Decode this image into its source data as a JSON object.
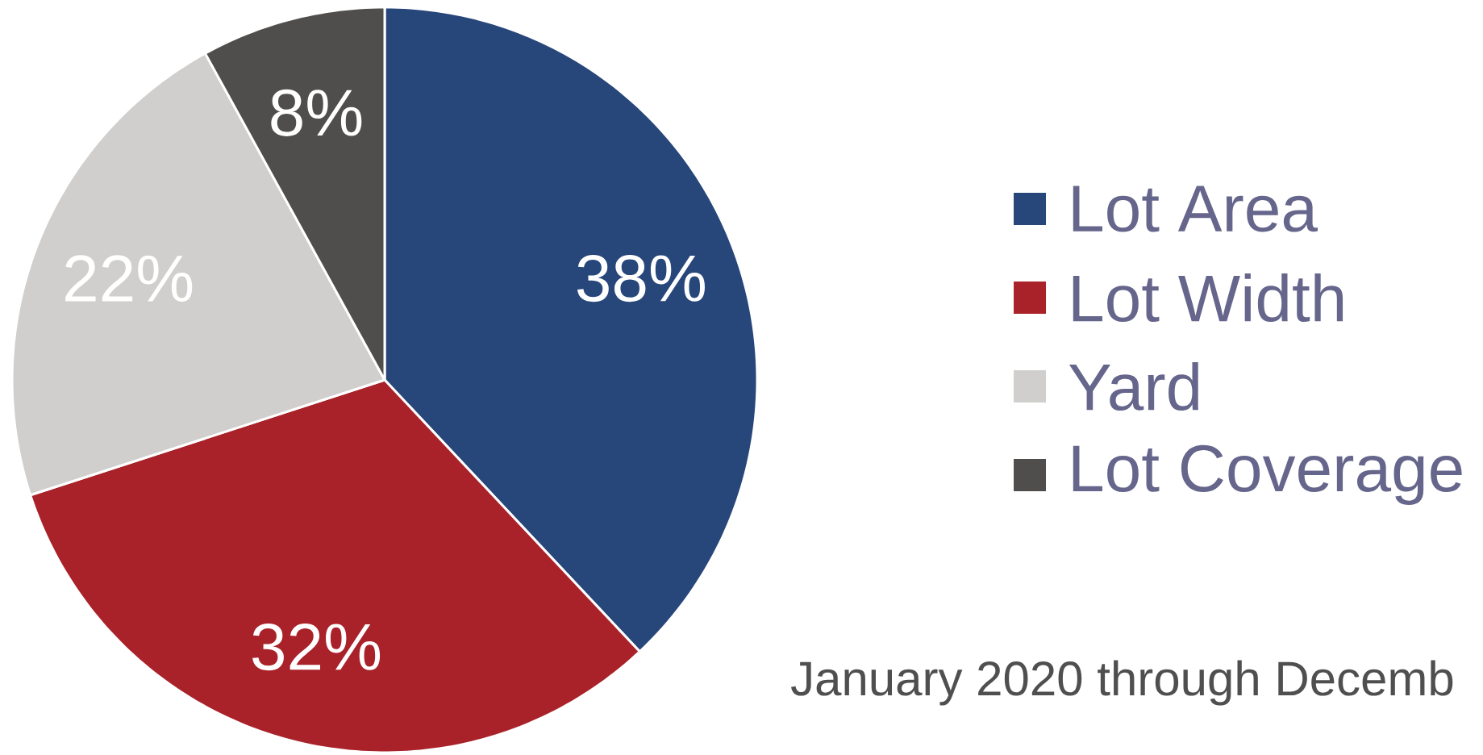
{
  "chart_data": {
    "type": "pie",
    "categories": [
      "Lot Area",
      "Lot Width",
      "Yard",
      "Lot Coverage"
    ],
    "values": [
      38,
      32,
      22,
      8
    ],
    "colors": [
      "#27467a",
      "#aa2229",
      "#d0cfcd",
      "#4f4e4c"
    ],
    "value_labels": [
      "38%",
      "32%",
      "22%",
      "8%"
    ],
    "legend": "right",
    "annotations": [
      "January 2020 through Decemb"
    ]
  }
}
